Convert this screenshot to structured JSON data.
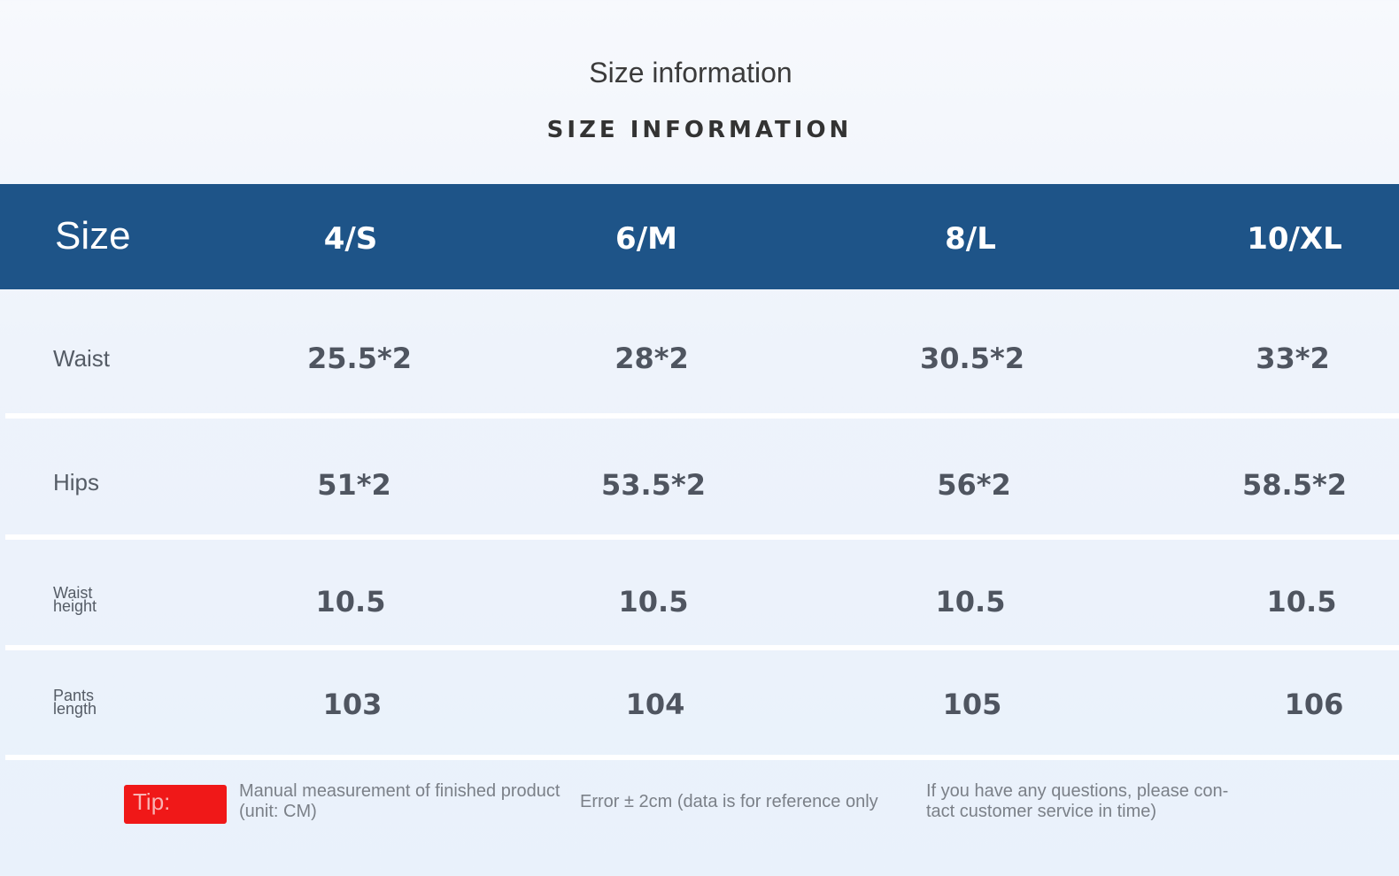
{
  "title": "Size information",
  "subtitle": "SIZE INFORMATION",
  "table": {
    "header": [
      "Size",
      "4/S",
      "6/M",
      "8/L",
      "10/XL"
    ],
    "rows": [
      {
        "label_lines": [
          "Waist"
        ],
        "values": [
          "25.5*2",
          "28*2",
          "30.5*2",
          "33*2"
        ]
      },
      {
        "label_lines": [
          "Hips"
        ],
        "values": [
          "51*2",
          "53.5*2",
          "56*2",
          "58.5*2"
        ]
      },
      {
        "label_lines": [
          "Waist",
          "height"
        ],
        "values": [
          "10.5",
          "10.5",
          "10.5",
          "10.5"
        ]
      },
      {
        "label_lines": [
          "Pants",
          "length"
        ],
        "values": [
          "103",
          "104",
          "105",
          "106"
        ]
      }
    ]
  },
  "footer": {
    "tip_label": "Tip:",
    "note1_lines": [
      "Manual measurement of finished product",
      "(unit: CM)"
    ],
    "note2": "Error ± 2cm (data is for reference only",
    "note3_lines": [
      "If you have any questions, please con-",
      "tact customer service in time)"
    ]
  },
  "colors": {
    "header_bg": "#1e5488",
    "tip_bg": "#f01818"
  }
}
